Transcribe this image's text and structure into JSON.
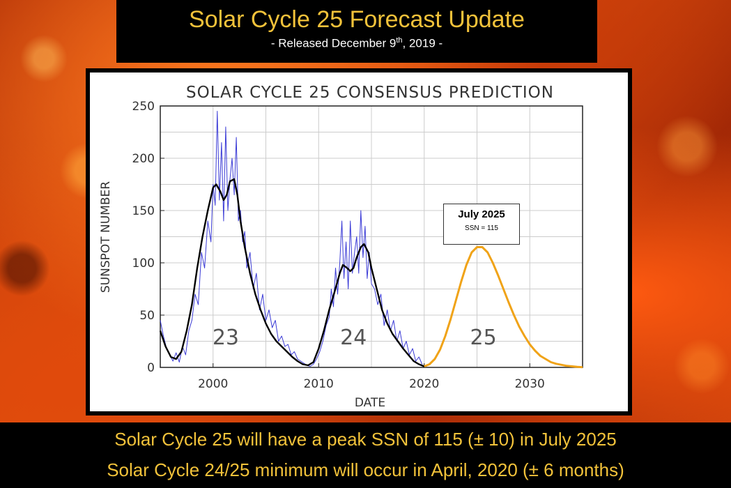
{
  "header": {
    "title": "Solar Cycle 25 Forecast Update",
    "subtitle_prefix": "- Released December 9",
    "subtitle_sup": "th",
    "subtitle_suffix": ", 2019 -"
  },
  "footer": {
    "line1": "Solar Cycle 25 will have a peak SSN of 115 (± 10) in July 2025",
    "line2": "Solar Cycle 24/25 minimum will occur in April, 2020 (± 6 months)"
  },
  "chart_data": {
    "type": "line",
    "title": "SOLAR CYCLE 25 CONSENSUS PREDICTION",
    "xlabel": "DATE",
    "ylabel": "SUNSPOT NUMBER",
    "xlim": [
      1995,
      2035
    ],
    "ylim": [
      0,
      250
    ],
    "x_ticks": [
      2000,
      2010,
      2020,
      2030
    ],
    "y_ticks": [
      0,
      50,
      100,
      150,
      200,
      250
    ],
    "grid": true,
    "colors": {
      "monthly": "#3b3bd6",
      "smoothed": "#000000",
      "prediction": "#f0a318",
      "grid": "#cccccc"
    },
    "cycle_labels": [
      {
        "text": "23",
        "x": 2001.2,
        "y": 22
      },
      {
        "text": "24",
        "x": 2013.3,
        "y": 22
      },
      {
        "text": "25",
        "x": 2025.6,
        "y": 22
      }
    ],
    "annotation": {
      "title": "July 2025",
      "text": "SSN = 115"
    },
    "series": [
      {
        "x": [
          1995.0,
          1995.5,
          1996.0,
          1996.5,
          1997.0,
          1997.5,
          1998.0,
          1998.5,
          1999.0,
          1999.5,
          2000.0,
          2000.3,
          2000.7,
          2001.0,
          2001.3,
          2001.6,
          2002.0,
          2002.3,
          2002.6,
          2003.0,
          2003.5,
          2004.0,
          2004.5,
          2005.0,
          2005.5,
          2006.0,
          2006.5,
          2007.0,
          2007.5,
          2008.0,
          2008.5,
          2009.0,
          2009.5,
          2010.0,
          2010.5,
          2011.0,
          2011.5,
          2012.0,
          2012.3,
          2012.7,
          2013.0,
          2013.3,
          2013.6,
          2014.0,
          2014.3,
          2014.7,
          2015.0,
          2015.5,
          2016.0,
          2016.5,
          2017.0,
          2017.5,
          2018.0,
          2018.5,
          2019.0,
          2019.5,
          2020.0
        ],
        "values": [
          35,
          20,
          10,
          8,
          15,
          35,
          60,
          95,
          125,
          150,
          172,
          175,
          168,
          160,
          165,
          178,
          180,
          165,
          140,
          115,
          90,
          70,
          55,
          42,
          32,
          25,
          20,
          15,
          10,
          6,
          3,
          2,
          5,
          18,
          35,
          55,
          72,
          90,
          98,
          95,
          92,
          95,
          105,
          115,
          118,
          110,
          95,
          75,
          55,
          42,
          32,
          25,
          18,
          12,
          6,
          3,
          1
        ]
      },
      {
        "x": [
          1995.0,
          1995.3,
          1995.6,
          1995.9,
          1996.2,
          1996.5,
          1996.8,
          1997.1,
          1997.4,
          1997.7,
          1998.0,
          1998.3,
          1998.6,
          1998.9,
          1999.2,
          1999.5,
          1999.8,
          2000.0,
          2000.2,
          2000.4,
          2000.6,
          2000.8,
          2001.0,
          2001.2,
          2001.4,
          2001.6,
          2001.8,
          2002.0,
          2002.2,
          2002.4,
          2002.6,
          2002.8,
          2003.0,
          2003.2,
          2003.5,
          2003.8,
          2004.1,
          2004.4,
          2004.7,
          2005.0,
          2005.3,
          2005.6,
          2005.9,
          2006.2,
          2006.5,
          2006.8,
          2007.1,
          2007.4,
          2007.7,
          2008.0,
          2008.3,
          2008.6,
          2008.9,
          2009.2,
          2009.5,
          2009.8,
          2010.1,
          2010.4,
          2010.7,
          2011.0,
          2011.2,
          2011.4,
          2011.6,
          2011.8,
          2012.0,
          2012.2,
          2012.4,
          2012.6,
          2012.8,
          2013.0,
          2013.2,
          2013.4,
          2013.6,
          2013.8,
          2014.0,
          2014.2,
          2014.4,
          2014.6,
          2014.8,
          2015.0,
          2015.3,
          2015.6,
          2015.9,
          2016.2,
          2016.5,
          2016.8,
          2017.1,
          2017.4,
          2017.7,
          2018.0,
          2018.3,
          2018.6,
          2018.9,
          2019.2,
          2019.5,
          2019.8
        ],
        "values": [
          45,
          30,
          18,
          12,
          6,
          14,
          5,
          20,
          12,
          35,
          45,
          70,
          60,
          110,
          95,
          140,
          120,
          175,
          155,
          245,
          160,
          215,
          140,
          230,
          150,
          180,
          200,
          165,
          220,
          140,
          150,
          120,
          130,
          95,
          110,
          75,
          90,
          55,
          70,
          45,
          55,
          38,
          45,
          25,
          30,
          20,
          22,
          12,
          15,
          8,
          6,
          4,
          2,
          1,
          3,
          8,
          15,
          25,
          40,
          48,
          75,
          58,
          95,
          70,
          100,
          140,
          85,
          120,
          75,
          140,
          90,
          110,
          125,
          90,
          150,
          105,
          135,
          85,
          110,
          80,
          75,
          60,
          70,
          40,
          55,
          35,
          45,
          25,
          35,
          18,
          25,
          12,
          18,
          6,
          10,
          3
        ]
      },
      {
        "x": [
          2020.0,
          2020.5,
          2021.0,
          2021.5,
          2022.0,
          2022.5,
          2023.0,
          2023.5,
          2024.0,
          2024.5,
          2025.0,
          2025.5,
          2026.0,
          2026.5,
          2027.0,
          2027.5,
          2028.0,
          2028.5,
          2029.0,
          2029.5,
          2030.0,
          2030.5,
          2031.0,
          2031.5,
          2032.0,
          2032.5,
          2033.0,
          2033.5,
          2034.0,
          2034.5,
          2035.0
        ],
        "values": [
          1,
          3,
          8,
          17,
          30,
          46,
          64,
          82,
          98,
          110,
          115,
          115,
          110,
          100,
          88,
          75,
          62,
          50,
          39,
          30,
          22,
          16,
          11,
          8,
          5,
          3.5,
          2.5,
          1.5,
          1,
          0.5,
          0.2
        ]
      }
    ]
  }
}
